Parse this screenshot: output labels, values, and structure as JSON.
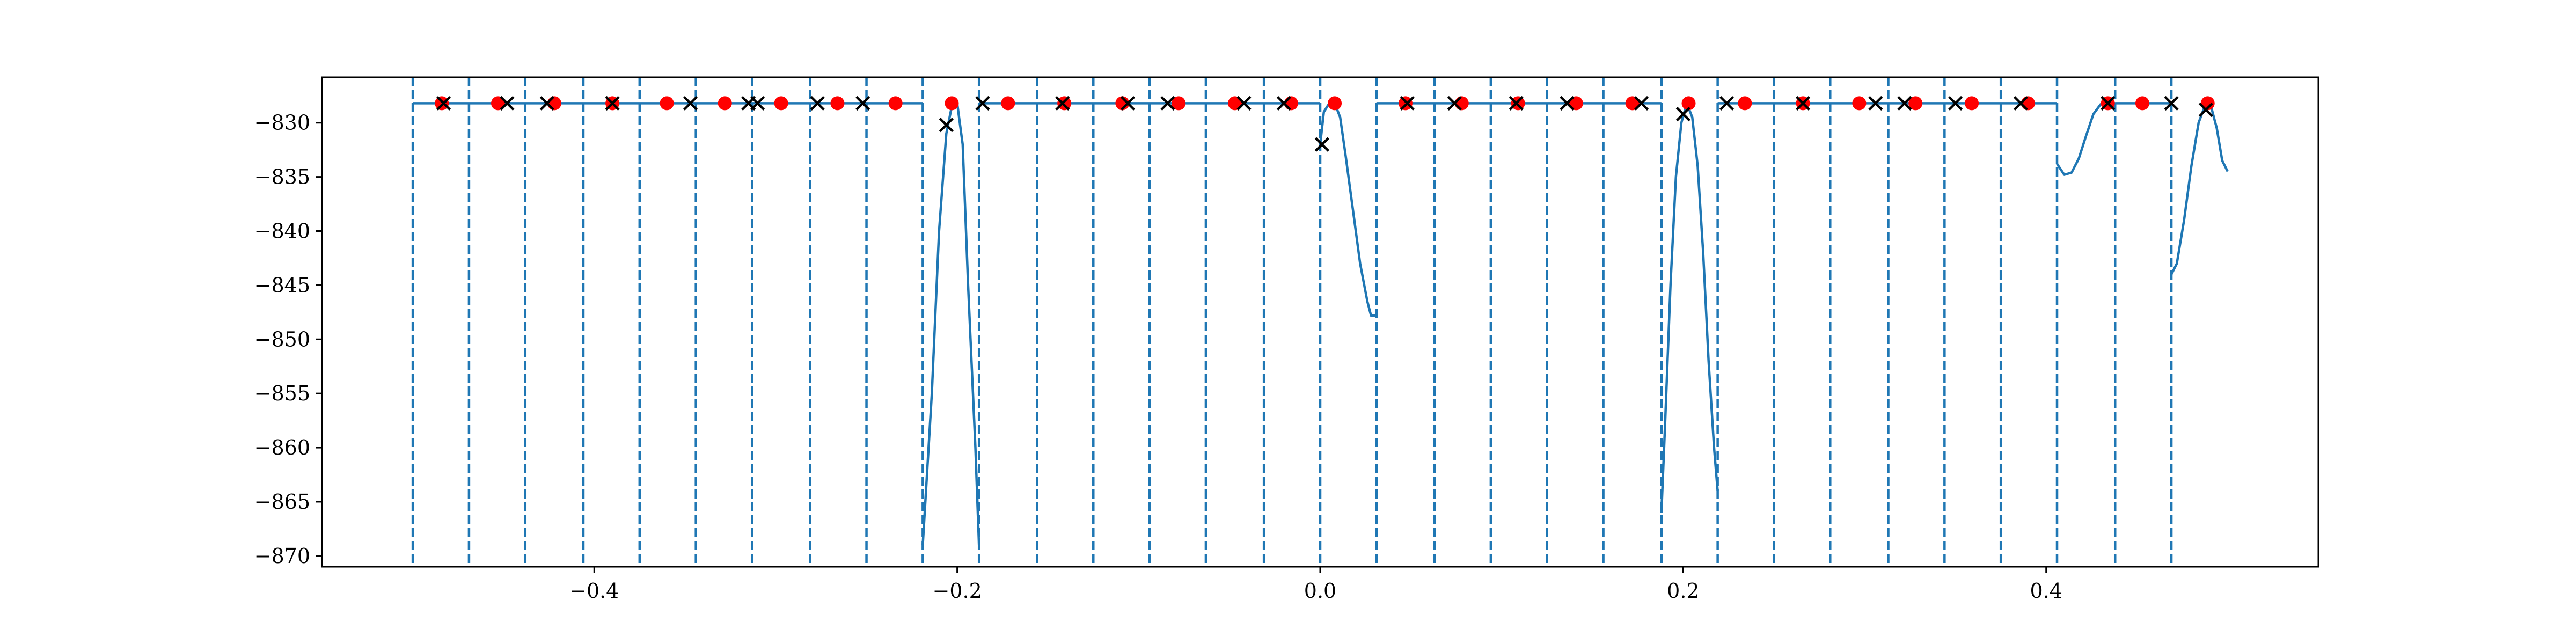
{
  "chart_data": {
    "type": "line",
    "title": "",
    "xlabel": "",
    "ylabel": "",
    "xlim": [
      -0.55,
      0.55
    ],
    "ylim": [
      -871,
      -825.8
    ],
    "grid": false,
    "legend": "none",
    "x_ticks": [
      {
        "value": -0.4,
        "label": "−0.4"
      },
      {
        "value": -0.2,
        "label": "−0.2"
      },
      {
        "value": 0.0,
        "label": "0.0"
      },
      {
        "value": 0.2,
        "label": "0.2"
      },
      {
        "value": 0.4,
        "label": "0.4"
      }
    ],
    "y_ticks": [
      {
        "value": -830,
        "label": "−830"
      },
      {
        "value": -835,
        "label": "−835"
      },
      {
        "value": -840,
        "label": "−840"
      },
      {
        "value": -845,
        "label": "−845"
      },
      {
        "value": -850,
        "label": "−850"
      },
      {
        "value": -855,
        "label": "−855"
      },
      {
        "value": -860,
        "label": "−860"
      },
      {
        "value": -865,
        "label": "−865"
      },
      {
        "value": -870,
        "label": "−870"
      }
    ],
    "colors": {
      "line": "#1f77b4",
      "dots": "#ff0000",
      "crosses": "#000000"
    },
    "dashed_vertical_lines_x": [
      -0.5,
      -0.469,
      -0.438,
      -0.406,
      -0.375,
      -0.344,
      -0.313,
      -0.281,
      -0.25,
      -0.219,
      -0.188,
      -0.156,
      -0.125,
      -0.094,
      -0.063,
      -0.031,
      0.0,
      0.031,
      0.063,
      0.094,
      0.125,
      0.156,
      0.188,
      0.219,
      0.25,
      0.281,
      0.313,
      0.344,
      0.375,
      0.406,
      0.438,
      0.469
    ],
    "line_segments": [
      {
        "x": [
          -0.5,
          -0.219
        ],
        "y": [
          -828.2,
          -828.2
        ]
      },
      {
        "x": [
          -0.219,
          -0.214,
          -0.21,
          -0.206,
          -0.203,
          -0.2,
          -0.197,
          -0.194,
          -0.19,
          -0.188
        ],
        "y": [
          -869,
          -855,
          -840,
          -831,
          -828.5,
          -828.2,
          -832,
          -845,
          -860,
          -869
        ]
      },
      {
        "x": [
          -0.188,
          0.0
        ],
        "y": [
          -828.2,
          -828.2
        ]
      },
      {
        "x": [
          0.0,
          0.002,
          0.005,
          0.008,
          0.011,
          0.014,
          0.018,
          0.022,
          0.026,
          0.028,
          0.031
        ],
        "y": [
          -832,
          -829,
          -828.2,
          -828.2,
          -829.5,
          -833,
          -838,
          -843,
          -846.5,
          -847.8,
          -847.8
        ]
      },
      {
        "x": [
          0.031,
          0.188
        ],
        "y": [
          -828.2,
          -828.2
        ]
      },
      {
        "x": [
          0.188,
          0.19,
          0.193,
          0.196,
          0.199,
          0.202,
          0.205,
          0.208,
          0.211,
          0.214,
          0.217,
          0.219
        ],
        "y": [
          -866,
          -858,
          -845,
          -835,
          -830,
          -828.2,
          -829.5,
          -834,
          -842,
          -852,
          -860,
          -864
        ]
      },
      {
        "x": [
          0.219,
          0.406
        ],
        "y": [
          -828.2,
          -828.2
        ]
      },
      {
        "x": [
          0.406,
          0.41,
          0.414,
          0.418,
          0.422,
          0.426,
          0.43,
          0.434,
          0.438
        ],
        "y": [
          -833.8,
          -834.8,
          -834.6,
          -833.3,
          -831.2,
          -829.2,
          -828.3,
          -828.2,
          -828.2
        ]
      },
      {
        "x": [
          0.438,
          0.469
        ],
        "y": [
          -828.2,
          -828.2
        ]
      },
      {
        "x": [
          0.469,
          0.472,
          0.476,
          0.48,
          0.484,
          0.488,
          0.491,
          0.494,
          0.497,
          0.5
        ],
        "y": [
          -844,
          -843,
          -839,
          -834,
          -830,
          -828.2,
          -828.6,
          -830.5,
          -833.5,
          -834.5
        ]
      }
    ],
    "dots": [
      {
        "x": -0.484,
        "y": -828.2
      },
      {
        "x": -0.453,
        "y": -828.2
      },
      {
        "x": -0.422,
        "y": -828.2
      },
      {
        "x": -0.39,
        "y": -828.2
      },
      {
        "x": -0.36,
        "y": -828.2
      },
      {
        "x": -0.328,
        "y": -828.2
      },
      {
        "x": -0.297,
        "y": -828.2
      },
      {
        "x": -0.266,
        "y": -828.2
      },
      {
        "x": -0.234,
        "y": -828.2
      },
      {
        "x": -0.203,
        "y": -828.2
      },
      {
        "x": -0.172,
        "y": -828.2
      },
      {
        "x": -0.141,
        "y": -828.2
      },
      {
        "x": -0.109,
        "y": -828.2
      },
      {
        "x": -0.078,
        "y": -828.2
      },
      {
        "x": -0.047,
        "y": -828.2
      },
      {
        "x": -0.016,
        "y": -828.2
      },
      {
        "x": 0.008,
        "y": -828.2
      },
      {
        "x": 0.047,
        "y": -828.2
      },
      {
        "x": 0.078,
        "y": -828.2
      },
      {
        "x": 0.109,
        "y": -828.2
      },
      {
        "x": 0.141,
        "y": -828.2
      },
      {
        "x": 0.172,
        "y": -828.2
      },
      {
        "x": 0.203,
        "y": -828.2
      },
      {
        "x": 0.234,
        "y": -828.2
      },
      {
        "x": 0.266,
        "y": -828.2
      },
      {
        "x": 0.297,
        "y": -828.2
      },
      {
        "x": 0.328,
        "y": -828.2
      },
      {
        "x": 0.359,
        "y": -828.2
      },
      {
        "x": 0.39,
        "y": -828.2
      },
      {
        "x": 0.434,
        "y": -828.2
      },
      {
        "x": 0.453,
        "y": -828.2
      },
      {
        "x": 0.489,
        "y": -828.2
      }
    ],
    "crosses": [
      {
        "x": -0.483,
        "y": -828.2
      },
      {
        "x": -0.448,
        "y": -828.2
      },
      {
        "x": -0.426,
        "y": -828.2
      },
      {
        "x": -0.39,
        "y": -828.2
      },
      {
        "x": -0.347,
        "y": -828.2
      },
      {
        "x": -0.315,
        "y": -828.2
      },
      {
        "x": -0.31,
        "y": -828.2
      },
      {
        "x": -0.277,
        "y": -828.2
      },
      {
        "x": -0.252,
        "y": -828.2
      },
      {
        "x": -0.206,
        "y": -830.2
      },
      {
        "x": -0.186,
        "y": -828.2
      },
      {
        "x": -0.142,
        "y": -828.2
      },
      {
        "x": -0.106,
        "y": -828.2
      },
      {
        "x": -0.084,
        "y": -828.2
      },
      {
        "x": -0.042,
        "y": -828.2
      },
      {
        "x": -0.02,
        "y": -828.2
      },
      {
        "x": 0.001,
        "y": -832
      },
      {
        "x": 0.048,
        "y": -828.2
      },
      {
        "x": 0.074,
        "y": -828.2
      },
      {
        "x": 0.108,
        "y": -828.2
      },
      {
        "x": 0.136,
        "y": -828.2
      },
      {
        "x": 0.177,
        "y": -828.2
      },
      {
        "x": 0.2,
        "y": -829.2
      },
      {
        "x": 0.224,
        "y": -828.2
      },
      {
        "x": 0.266,
        "y": -828.2
      },
      {
        "x": 0.306,
        "y": -828.2
      },
      {
        "x": 0.322,
        "y": -828.2
      },
      {
        "x": 0.35,
        "y": -828.2
      },
      {
        "x": 0.386,
        "y": -828.2
      },
      {
        "x": 0.434,
        "y": -828.2
      },
      {
        "x": 0.469,
        "y": -828.2
      },
      {
        "x": 0.488,
        "y": -828.8
      }
    ]
  }
}
